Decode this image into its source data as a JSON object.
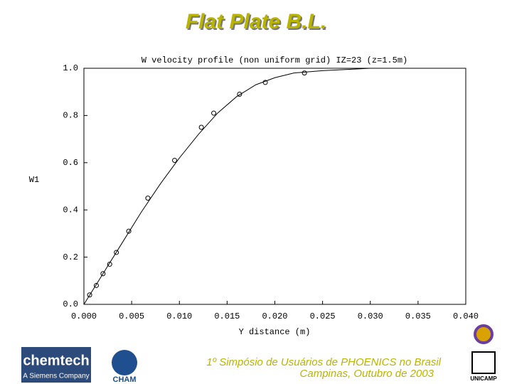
{
  "slide": {
    "title": "Flat Plate B.L.",
    "footer_line1": "1º Simpósio de Usuários de PHOENICS no Brasil",
    "footer_line2": "Campinas, Outubro de 2003",
    "logo_left": "chemtech",
    "logo_left_sub": "A Siemens Company",
    "logo_cham": "CHAM",
    "logo_right": "UNICAMP"
  },
  "chart_data": {
    "type": "line",
    "title": "W velocity profile (non uniform grid) IZ=23 (z=1.5m)",
    "x_label": "Y distance (m)",
    "y_label": "W1",
    "xlim": [
      0,
      0.04
    ],
    "ylim": [
      0,
      1.0
    ],
    "xticks": [
      {
        "value": 0,
        "label": "0.000"
      },
      {
        "value": 0.005,
        "label": "0.005"
      },
      {
        "value": 0.01,
        "label": "0.010"
      },
      {
        "value": 0.015,
        "label": "0.015"
      },
      {
        "value": 0.02,
        "label": "0.020"
      },
      {
        "value": 0.025,
        "label": "0.025"
      },
      {
        "value": 0.03,
        "label": "0.030"
      },
      {
        "value": 0.035,
        "label": "0.035"
      },
      {
        "value": 0.04,
        "label": "0.040"
      }
    ],
    "yticks": [
      {
        "value": 0,
        "label": "0.0"
      },
      {
        "value": 0.2,
        "label": "0.2"
      },
      {
        "value": 0.4,
        "label": "0.4"
      },
      {
        "value": 0.6,
        "label": "0.6"
      },
      {
        "value": 0.8,
        "label": "0.8"
      },
      {
        "value": 1.0,
        "label": "1.0"
      }
    ],
    "series": [
      {
        "type": "line",
        "color": "#000000",
        "x": [
          0,
          0.002,
          0.004,
          0.006,
          0.008,
          0.01,
          0.012,
          0.014,
          0.016,
          0.018,
          0.02,
          0.022,
          0.025,
          0.03,
          0.04
        ],
        "values": [
          0,
          0.13,
          0.26,
          0.39,
          0.51,
          0.62,
          0.72,
          0.81,
          0.88,
          0.93,
          0.96,
          0.98,
          0.99,
          1.0,
          1.0
        ]
      },
      {
        "type": "scatter",
        "color": "#000000",
        "x": [
          0.0006,
          0.0013,
          0.002,
          0.0027,
          0.0034,
          0.0047,
          0.0067,
          0.0095,
          0.0123,
          0.0136,
          0.0163,
          0.019,
          0.0231
        ],
        "values": [
          0.04,
          0.08,
          0.13,
          0.17,
          0.22,
          0.31,
          0.45,
          0.61,
          0.75,
          0.81,
          0.89,
          0.94,
          0.98
        ]
      }
    ]
  }
}
